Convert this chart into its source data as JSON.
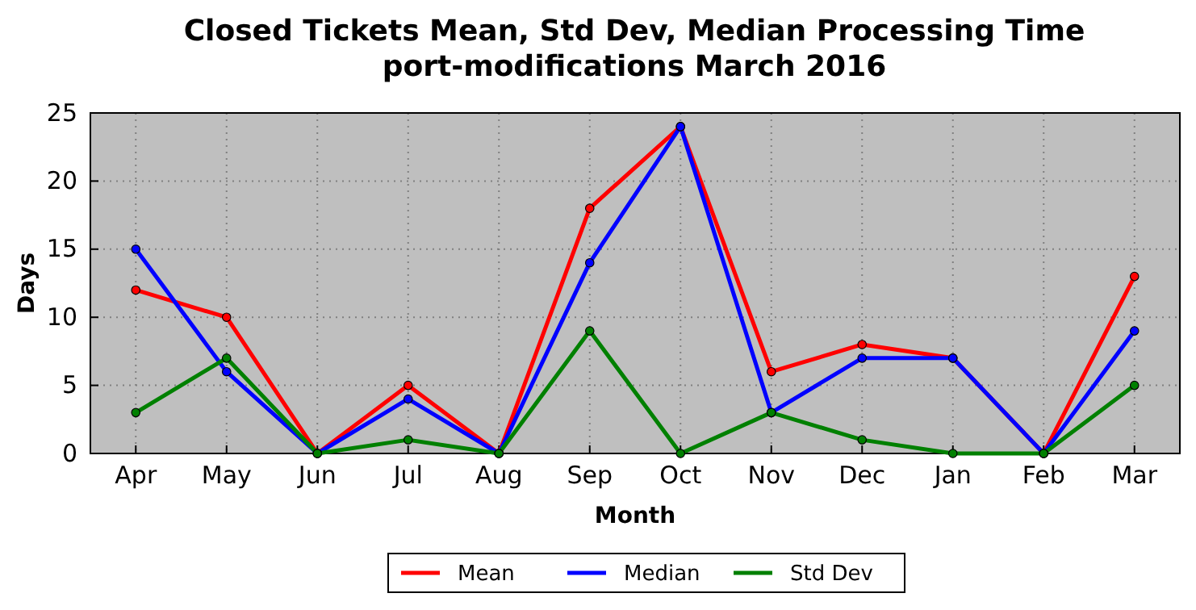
{
  "chart_data": {
    "type": "line",
    "title": "Closed Tickets Mean, Std Dev, Median Processing Time\nport-modifications March 2016",
    "xlabel": "Month",
    "ylabel": "Days",
    "categories": [
      "Apr",
      "May",
      "Jun",
      "Jul",
      "Aug",
      "Sep",
      "Oct",
      "Nov",
      "Dec",
      "Jan",
      "Feb",
      "Mar"
    ],
    "series": [
      {
        "name": "Mean",
        "color": "#ff0000",
        "values": [
          12,
          10,
          0,
          5,
          0,
          18,
          24,
          6,
          8,
          7,
          0,
          13
        ]
      },
      {
        "name": "Median",
        "color": "#0000ff",
        "values": [
          15,
          6,
          0,
          4,
          0,
          14,
          24,
          3,
          7,
          7,
          0,
          9
        ]
      },
      {
        "name": "Std Dev",
        "color": "#008000",
        "values": [
          3,
          7,
          0,
          1,
          0,
          9,
          0,
          3,
          1,
          0,
          0,
          5
        ]
      }
    ],
    "ylim": [
      0,
      25
    ],
    "yticks": [
      0,
      5,
      10,
      15,
      20,
      25
    ],
    "grid": true,
    "legend": "bottom",
    "marker": "circle",
    "line_style": "solid"
  }
}
